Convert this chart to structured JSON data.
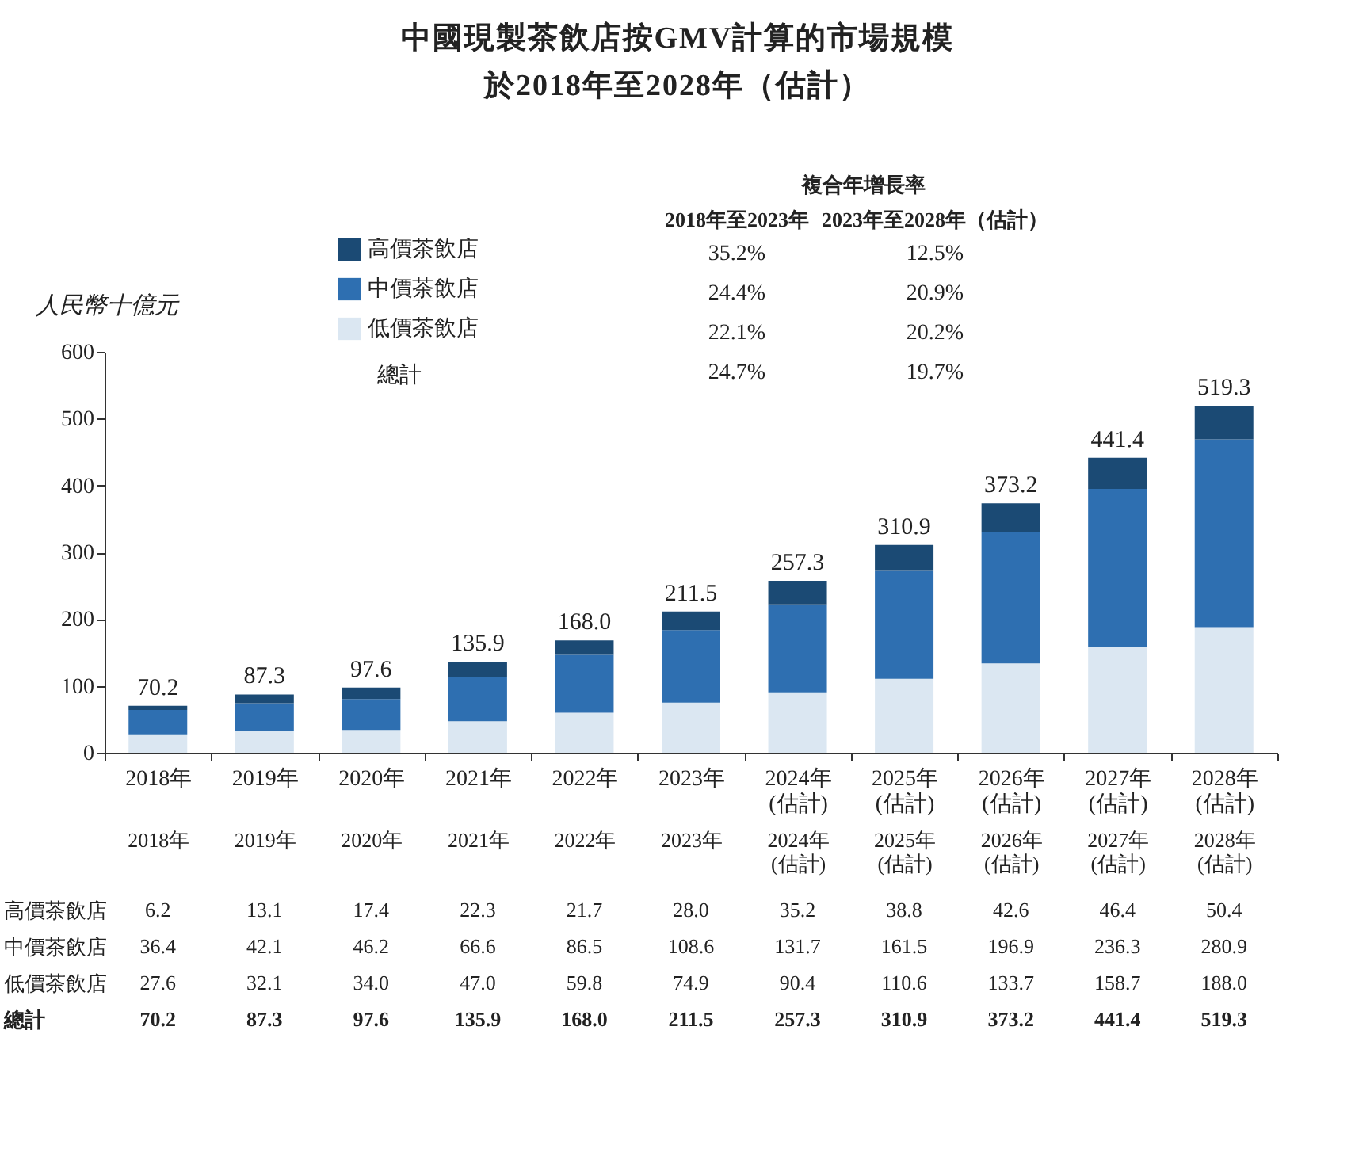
{
  "chart_data": {
    "type": "bar",
    "title": "中國現製茶飲店按GMV計算的市場規模",
    "subtitle": "於2018年至2028年（估計）",
    "ylabel": "人民幣十億元",
    "categories": [
      "2018年",
      "2019年",
      "2020年",
      "2021年",
      "2022年",
      "2023年",
      "2024年\n(估計)",
      "2025年\n(估計)",
      "2026年\n(估計)",
      "2027年\n(估計)",
      "2028年\n(估計)"
    ],
    "stacked": true,
    "ylim": [
      0,
      600
    ],
    "yticks": [
      0,
      100,
      200,
      300,
      400,
      500,
      600
    ],
    "legend": "top",
    "series": [
      {
        "name": "低價茶飲店",
        "color": "#dbe7f2",
        "values": [
          27.6,
          32.1,
          34.0,
          47.0,
          59.8,
          74.9,
          90.4,
          110.6,
          133.7,
          158.7,
          188.0
        ],
        "value_labels": [
          "27.6",
          "32.1",
          "34.0",
          "47.0",
          "59.8",
          "74.9",
          "90.4",
          "110.6",
          "133.7",
          "158.7",
          "188.0"
        ]
      },
      {
        "name": "中價茶飲店",
        "color": "#2e6fb1",
        "values": [
          36.4,
          42.1,
          46.2,
          66.6,
          86.5,
          108.6,
          131.7,
          161.5,
          196.9,
          236.3,
          280.9
        ],
        "value_labels": [
          "36.4",
          "42.1",
          "46.2",
          "66.6",
          "86.5",
          "108.6",
          "131.7",
          "161.5",
          "196.9",
          "236.3",
          "280.9"
        ]
      },
      {
        "name": "高價茶飲店",
        "color": "#1b4a74",
        "values": [
          6.2,
          13.1,
          17.4,
          22.3,
          21.7,
          28.0,
          35.2,
          38.8,
          42.6,
          46.4,
          50.4
        ],
        "value_labels": [
          "6.2",
          "13.1",
          "17.4",
          "22.3",
          "21.7",
          "28.0",
          "35.2",
          "38.8",
          "42.6",
          "46.4",
          "50.4"
        ]
      }
    ],
    "totals": [
      "70.2",
      "87.3",
      "97.6",
      "135.9",
      "168.0",
      "211.5",
      "257.3",
      "310.9",
      "373.2",
      "441.4",
      "519.3"
    ],
    "annotations": [
      "複合年增長率",
      "2018年至2023年",
      "2023年至2028年（估計）",
      "35.2%",
      "12.5%",
      "24.4%",
      "20.9%",
      "22.1%",
      "20.2%",
      "總計",
      "24.7%",
      "19.7%"
    ]
  }
}
